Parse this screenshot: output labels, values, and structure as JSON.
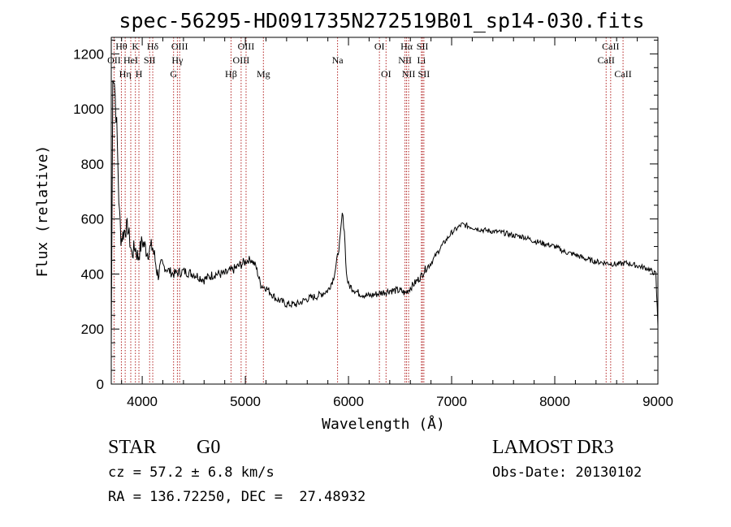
{
  "chart_data": {
    "type": "line",
    "title": "spec-56295-HD091735N272519B01_sp14-030.fits",
    "xlabel": "Wavelength (Å)",
    "ylabel": "Flux (relative)",
    "xlim": [
      3700,
      9000
    ],
    "ylim": [
      0,
      1260
    ],
    "x_ticks": [
      4000,
      5000,
      6000,
      7000,
      8000,
      9000
    ],
    "y_ticks": [
      0,
      200,
      400,
      600,
      800,
      1000,
      1200
    ],
    "grid": false,
    "line_color": "#000000",
    "marker_color": "#b22222",
    "series": [
      {
        "name": "flux",
        "x": [
          3700,
          3715,
          3730,
          3745,
          3760,
          3780,
          3800,
          3830,
          3860,
          3900,
          3930,
          3960,
          4000,
          4050,
          4100,
          4150,
          4200,
          4300,
          4400,
          4500,
          4600,
          4700,
          4800,
          4900,
          5000,
          5050,
          5100,
          5150,
          5200,
          5300,
          5400,
          5500,
          5600,
          5700,
          5800,
          5850,
          5880,
          5900,
          5920,
          5940,
          5960,
          5980,
          6000,
          6100,
          6200,
          6300,
          6400,
          6500,
          6550,
          6600,
          6650,
          6700,
          6750,
          6800,
          6900,
          7000,
          7100,
          7200,
          7300,
          7400,
          7500,
          7600,
          7700,
          7800,
          7900,
          8000,
          8100,
          8200,
          8300,
          8400,
          8500,
          8600,
          8700,
          8800,
          8900,
          8980,
          9000
        ],
        "y": [
          150,
          1150,
          1100,
          1000,
          850,
          600,
          530,
          560,
          570,
          470,
          500,
          460,
          520,
          480,
          500,
          400,
          430,
          400,
          410,
          400,
          380,
          400,
          400,
          420,
          445,
          455,
          430,
          360,
          350,
          310,
          290,
          290,
          310,
          320,
          340,
          380,
          430,
          480,
          530,
          620,
          560,
          400,
          360,
          330,
          320,
          330,
          340,
          340,
          330,
          350,
          370,
          390,
          420,
          440,
          500,
          550,
          580,
          570,
          560,
          555,
          550,
          540,
          535,
          520,
          510,
          500,
          480,
          470,
          455,
          445,
          440,
          435,
          440,
          430,
          420,
          400,
          210
        ]
      }
    ],
    "line_markers": [
      {
        "label": "OII",
        "x": 3727,
        "row": 1
      },
      {
        "label": "Hθ",
        "x": 3798,
        "row": 0
      },
      {
        "label": "Hη",
        "x": 3835,
        "row": 2
      },
      {
        "label": "HeI",
        "x": 3889,
        "row": 1
      },
      {
        "label": "K",
        "x": 3934,
        "row": 0
      },
      {
        "label": "H",
        "x": 3968,
        "row": 2
      },
      {
        "label": "SII",
        "x": 4072,
        "row": 1
      },
      {
        "label": "Hδ",
        "x": 4102,
        "row": 0
      },
      {
        "label": "G",
        "x": 4304,
        "row": 2
      },
      {
        "label": "Hγ",
        "x": 4341,
        "row": 1
      },
      {
        "label": "OIII",
        "x": 4363,
        "row": 0
      },
      {
        "label": "Hβ",
        "x": 4861,
        "row": 2
      },
      {
        "label": "OIII",
        "x": 4959,
        "row": 1
      },
      {
        "label": "OIII",
        "x": 5007,
        "row": 0
      },
      {
        "label": "Mg",
        "x": 5175,
        "row": 2
      },
      {
        "label": "Na",
        "x": 5894,
        "row": 1
      },
      {
        "label": "OI",
        "x": 6300,
        "row": 0
      },
      {
        "label": "OI",
        "x": 6364,
        "row": 2
      },
      {
        "label": "NII",
        "x": 6548,
        "row": 1
      },
      {
        "label": "Hα",
        "x": 6563,
        "row": 0
      },
      {
        "label": "NII",
        "x": 6583,
        "row": 2
      },
      {
        "label": "Li",
        "x": 6707,
        "row": 1
      },
      {
        "label": "SII",
        "x": 6717,
        "row": 0
      },
      {
        "label": "SII",
        "x": 6731,
        "row": 2
      },
      {
        "label": "CaII",
        "x": 8498,
        "row": 1
      },
      {
        "label": "CaII",
        "x": 8542,
        "row": 0
      },
      {
        "label": "CaII",
        "x": 8662,
        "row": 2
      }
    ]
  },
  "info": {
    "object_class": "STAR",
    "subclass": "G0",
    "cz": "cz = 57.2 ± 6.8 km/s",
    "coords": "RA = 136.72250, DEC =  27.48932",
    "survey": "LAMOST DR3",
    "obs_date": "Obs-Date: 20130102"
  }
}
